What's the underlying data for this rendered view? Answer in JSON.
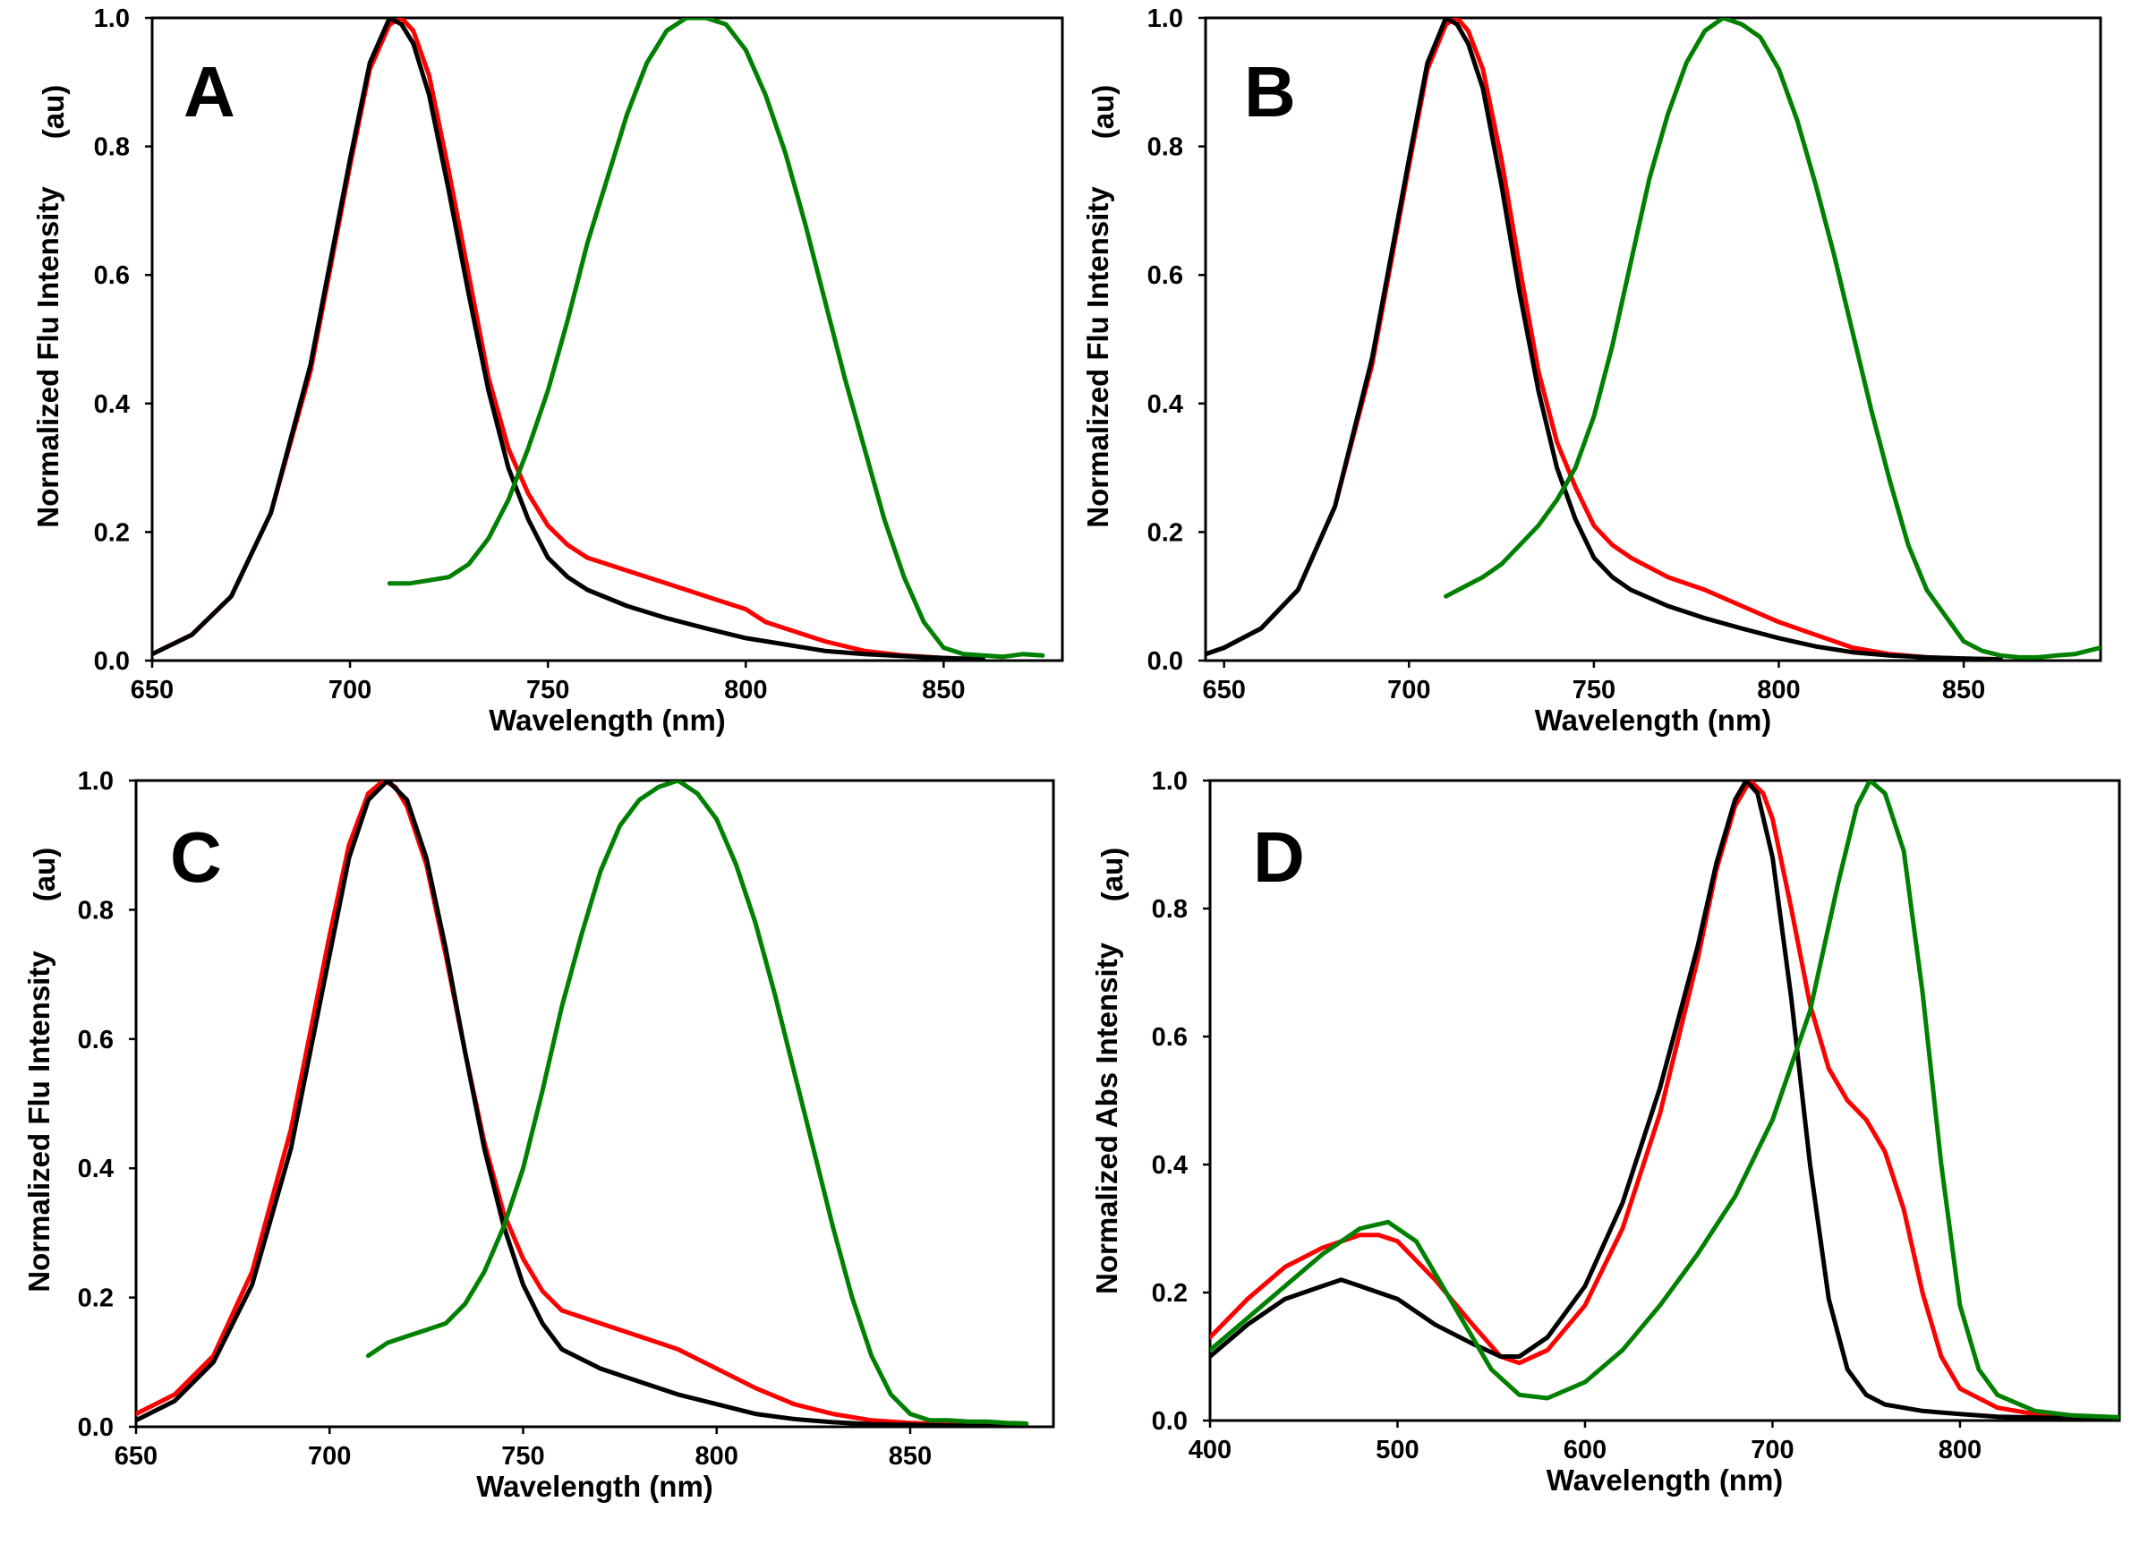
{
  "chart_data": [
    {
      "type": "line",
      "panel_label": "A",
      "xlabel": "Wavelength (nm)",
      "ylabel_main": "Normalized Flu Intensity",
      "ylabel_unit": "(au)",
      "xlim": [
        650,
        880
      ],
      "ylim": [
        0,
        1.0
      ],
      "x_ticks": [
        "650",
        "700",
        "750",
        "800",
        "850"
      ],
      "y_ticks": [
        "0.0",
        "0.2",
        "0.4",
        "0.6",
        "0.8",
        "1.0"
      ],
      "series": [
        {
          "name": "red",
          "color": "#ff0000",
          "x": [
            650,
            660,
            670,
            680,
            690,
            700,
            705,
            710,
            713,
            716,
            720,
            725,
            730,
            735,
            740,
            745,
            750,
            755,
            760,
            765,
            770,
            780,
            790,
            800,
            805,
            810,
            820,
            830,
            840,
            850,
            860
          ],
          "y": [
            0.01,
            0.04,
            0.1,
            0.23,
            0.45,
            0.77,
            0.92,
            0.99,
            1.0,
            0.98,
            0.91,
            0.76,
            0.6,
            0.44,
            0.33,
            0.26,
            0.21,
            0.18,
            0.16,
            0.15,
            0.14,
            0.12,
            0.1,
            0.08,
            0.06,
            0.05,
            0.03,
            0.015,
            0.008,
            0.004,
            0.002
          ]
        },
        {
          "name": "black",
          "color": "#000000",
          "x": [
            650,
            660,
            670,
            680,
            690,
            700,
            705,
            710,
            713,
            716,
            720,
            725,
            730,
            735,
            740,
            745,
            750,
            755,
            760,
            770,
            780,
            790,
            800,
            810,
            820,
            830,
            840,
            850,
            860
          ],
          "y": [
            0.01,
            0.04,
            0.1,
            0.23,
            0.46,
            0.78,
            0.93,
            1.0,
            0.99,
            0.96,
            0.88,
            0.73,
            0.57,
            0.42,
            0.3,
            0.22,
            0.16,
            0.13,
            0.11,
            0.085,
            0.066,
            0.05,
            0.035,
            0.025,
            0.015,
            0.01,
            0.007,
            0.004,
            0.002
          ]
        },
        {
          "name": "green",
          "color": "#008000",
          "x": [
            710,
            715,
            720,
            725,
            730,
            735,
            740,
            745,
            750,
            755,
            760,
            765,
            770,
            775,
            780,
            785,
            790,
            795,
            800,
            805,
            810,
            815,
            820,
            825,
            830,
            835,
            840,
            845,
            850,
            855,
            860,
            865,
            870,
            875
          ],
          "y": [
            0.12,
            0.12,
            0.125,
            0.13,
            0.15,
            0.19,
            0.25,
            0.33,
            0.42,
            0.53,
            0.65,
            0.75,
            0.85,
            0.93,
            0.98,
            1.0,
            1.0,
            0.99,
            0.95,
            0.88,
            0.79,
            0.68,
            0.56,
            0.44,
            0.33,
            0.22,
            0.13,
            0.06,
            0.02,
            0.01,
            0.008,
            0.006,
            0.01,
            0.008
          ]
        }
      ]
    },
    {
      "type": "line",
      "panel_label": "B",
      "xlabel": "Wavelength (nm)",
      "ylabel_main": "Normalized Flu Intensity",
      "ylabel_unit": "(au)",
      "xlim": [
        645,
        887
      ],
      "ylim": [
        0,
        1.0
      ],
      "x_ticks": [
        "650",
        "700",
        "750",
        "800",
        "850"
      ],
      "y_ticks": [
        "0.0",
        "0.2",
        "0.4",
        "0.6",
        "0.8",
        "1.0"
      ],
      "series": [
        {
          "name": "red",
          "color": "#ff0000",
          "x": [
            645,
            650,
            660,
            670,
            680,
            690,
            700,
            705,
            710,
            713,
            716,
            720,
            725,
            730,
            735,
            740,
            745,
            750,
            755,
            760,
            770,
            780,
            790,
            800,
            810,
            820,
            830,
            840,
            850,
            860
          ],
          "y": [
            0.01,
            0.02,
            0.05,
            0.11,
            0.24,
            0.46,
            0.77,
            0.92,
            0.99,
            1.0,
            0.98,
            0.92,
            0.78,
            0.61,
            0.45,
            0.34,
            0.27,
            0.21,
            0.18,
            0.16,
            0.13,
            0.11,
            0.085,
            0.06,
            0.04,
            0.02,
            0.01,
            0.005,
            0.003,
            0.002
          ]
        },
        {
          "name": "black",
          "color": "#000000",
          "x": [
            645,
            650,
            660,
            670,
            680,
            690,
            700,
            705,
            710,
            713,
            716,
            720,
            725,
            730,
            735,
            740,
            745,
            750,
            755,
            760,
            770,
            780,
            790,
            800,
            810,
            820,
            830,
            840,
            850,
            860
          ],
          "y": [
            0.01,
            0.02,
            0.05,
            0.11,
            0.24,
            0.47,
            0.78,
            0.93,
            1.0,
            0.99,
            0.96,
            0.89,
            0.74,
            0.57,
            0.42,
            0.3,
            0.22,
            0.16,
            0.13,
            0.11,
            0.085,
            0.066,
            0.05,
            0.035,
            0.022,
            0.013,
            0.008,
            0.005,
            0.003,
            0.002
          ]
        },
        {
          "name": "green",
          "color": "#008000",
          "x": [
            710,
            715,
            720,
            725,
            730,
            735,
            740,
            745,
            750,
            755,
            760,
            765,
            770,
            775,
            780,
            785,
            790,
            795,
            800,
            805,
            810,
            815,
            820,
            825,
            830,
            835,
            840,
            845,
            850,
            855,
            860,
            865,
            870,
            875,
            880,
            887
          ],
          "y": [
            0.1,
            0.115,
            0.13,
            0.15,
            0.18,
            0.21,
            0.25,
            0.3,
            0.38,
            0.49,
            0.62,
            0.75,
            0.85,
            0.93,
            0.98,
            1.0,
            0.99,
            0.97,
            0.92,
            0.84,
            0.74,
            0.63,
            0.51,
            0.39,
            0.28,
            0.18,
            0.11,
            0.07,
            0.03,
            0.015,
            0.008,
            0.005,
            0.005,
            0.008,
            0.01,
            0.02
          ]
        }
      ]
    },
    {
      "type": "line",
      "panel_label": "C",
      "xlabel": "Wavelength (nm)",
      "ylabel_main": "Normalized Flu Intensity",
      "ylabel_unit": "(au)",
      "xlim": [
        650,
        887
      ],
      "ylim": [
        0,
        1.0
      ],
      "x_ticks": [
        "650",
        "700",
        "750",
        "800",
        "850"
      ],
      "y_ticks": [
        "0.0",
        "0.2",
        "0.4",
        "0.6",
        "0.8",
        "1.0"
      ],
      "series": [
        {
          "name": "red",
          "color": "#ff0000",
          "x": [
            650,
            660,
            670,
            680,
            690,
            700,
            705,
            710,
            714,
            717,
            720,
            725,
            730,
            735,
            740,
            745,
            750,
            755,
            760,
            765,
            770,
            780,
            790,
            800,
            810,
            820,
            830,
            840,
            850,
            860,
            870,
            880
          ],
          "y": [
            0.02,
            0.05,
            0.11,
            0.24,
            0.46,
            0.76,
            0.9,
            0.98,
            1.0,
            0.99,
            0.96,
            0.87,
            0.73,
            0.58,
            0.44,
            0.33,
            0.26,
            0.21,
            0.18,
            0.17,
            0.16,
            0.14,
            0.12,
            0.09,
            0.06,
            0.035,
            0.02,
            0.01,
            0.006,
            0.004,
            0.003,
            0.002
          ]
        },
        {
          "name": "black",
          "color": "#000000",
          "x": [
            650,
            660,
            670,
            680,
            690,
            700,
            705,
            710,
            715,
            720,
            725,
            730,
            735,
            740,
            745,
            750,
            755,
            760,
            770,
            780,
            790,
            800,
            810,
            820,
            830,
            840,
            850,
            860,
            870,
            880
          ],
          "y": [
            0.01,
            0.04,
            0.1,
            0.22,
            0.43,
            0.73,
            0.88,
            0.97,
            1.0,
            0.97,
            0.88,
            0.74,
            0.58,
            0.43,
            0.31,
            0.22,
            0.16,
            0.12,
            0.09,
            0.07,
            0.05,
            0.035,
            0.02,
            0.012,
            0.007,
            0.004,
            0.003,
            0.002,
            0.001,
            0.001
          ]
        },
        {
          "name": "green",
          "color": "#008000",
          "x": [
            710,
            715,
            720,
            725,
            730,
            735,
            740,
            745,
            750,
            755,
            760,
            765,
            770,
            775,
            780,
            785,
            790,
            795,
            800,
            805,
            810,
            815,
            820,
            825,
            830,
            835,
            840,
            845,
            850,
            855,
            860,
            865,
            870,
            875,
            880
          ],
          "y": [
            0.11,
            0.13,
            0.14,
            0.15,
            0.16,
            0.19,
            0.24,
            0.31,
            0.4,
            0.52,
            0.65,
            0.76,
            0.86,
            0.93,
            0.97,
            0.99,
            1.0,
            0.98,
            0.94,
            0.87,
            0.78,
            0.67,
            0.55,
            0.43,
            0.31,
            0.2,
            0.11,
            0.05,
            0.02,
            0.01,
            0.01,
            0.008,
            0.008,
            0.006,
            0.005
          ]
        }
      ]
    },
    {
      "type": "line",
      "panel_label": "D",
      "xlabel": "Wavelength (nm)",
      "ylabel_main": "Normalized Abs Intensity",
      "ylabel_unit": "(au)",
      "xlim": [
        400,
        885
      ],
      "ylim": [
        0,
        1.0
      ],
      "x_ticks": [
        "400",
        "500",
        "600",
        "700",
        "800"
      ],
      "y_ticks": [
        "0.0",
        "0.2",
        "0.4",
        "0.6",
        "0.8",
        "1.0"
      ],
      "series": [
        {
          "name": "red",
          "color": "#ff0000",
          "x": [
            400,
            420,
            440,
            460,
            480,
            490,
            500,
            520,
            540,
            555,
            565,
            580,
            600,
            620,
            640,
            660,
            670,
            680,
            688,
            695,
            700,
            710,
            720,
            730,
            740,
            750,
            760,
            770,
            780,
            790,
            800,
            820,
            840,
            860,
            885
          ],
          "y": [
            0.13,
            0.19,
            0.24,
            0.27,
            0.29,
            0.29,
            0.28,
            0.22,
            0.15,
            0.1,
            0.09,
            0.11,
            0.18,
            0.3,
            0.48,
            0.72,
            0.86,
            0.96,
            1.0,
            0.98,
            0.94,
            0.8,
            0.65,
            0.55,
            0.5,
            0.47,
            0.42,
            0.33,
            0.2,
            0.1,
            0.05,
            0.02,
            0.01,
            0.005,
            0.003
          ]
        },
        {
          "name": "black",
          "color": "#000000",
          "x": [
            400,
            420,
            440,
            460,
            470,
            480,
            500,
            520,
            540,
            555,
            565,
            580,
            600,
            620,
            640,
            660,
            670,
            680,
            686,
            692,
            700,
            710,
            720,
            730,
            740,
            750,
            760,
            780,
            800,
            820,
            850,
            885
          ],
          "y": [
            0.1,
            0.15,
            0.19,
            0.21,
            0.22,
            0.21,
            0.19,
            0.15,
            0.12,
            0.1,
            0.1,
            0.13,
            0.21,
            0.34,
            0.52,
            0.74,
            0.87,
            0.97,
            1.0,
            0.98,
            0.88,
            0.66,
            0.4,
            0.19,
            0.08,
            0.04,
            0.025,
            0.015,
            0.01,
            0.006,
            0.004,
            0.003
          ]
        },
        {
          "name": "green",
          "color": "#008000",
          "x": [
            400,
            420,
            440,
            460,
            480,
            495,
            510,
            530,
            550,
            565,
            580,
            600,
            620,
            640,
            660,
            680,
            700,
            720,
            735,
            745,
            752,
            760,
            770,
            780,
            790,
            800,
            810,
            820,
            840,
            860,
            885
          ],
          "y": [
            0.11,
            0.16,
            0.21,
            0.26,
            0.3,
            0.31,
            0.28,
            0.18,
            0.08,
            0.04,
            0.035,
            0.06,
            0.11,
            0.18,
            0.26,
            0.35,
            0.47,
            0.64,
            0.84,
            0.96,
            1.0,
            0.98,
            0.89,
            0.67,
            0.4,
            0.18,
            0.08,
            0.04,
            0.015,
            0.008,
            0.005
          ]
        }
      ]
    }
  ]
}
